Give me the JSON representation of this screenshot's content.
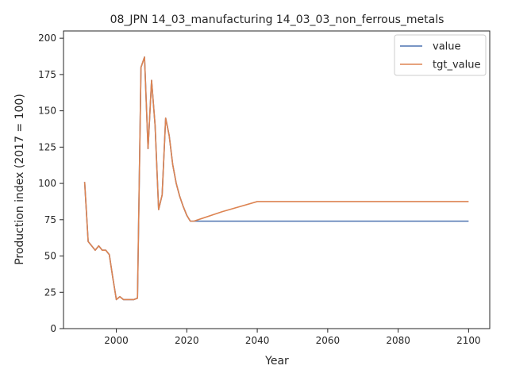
{
  "chart_data": {
    "type": "line",
    "title": "08_JPN 14_03_manufacturing 14_03_03_non_ferrous_metals",
    "xlabel": "Year",
    "ylabel": "Production index (2017 = 100)",
    "xlim": [
      1985,
      2106
    ],
    "ylim": [
      0,
      205
    ],
    "xticks": [
      2000,
      2020,
      2040,
      2060,
      2080,
      2100
    ],
    "yticks": [
      0,
      25,
      50,
      75,
      100,
      125,
      150,
      175,
      200
    ],
    "grid": false,
    "legend_position": "top-right",
    "series": [
      {
        "name": "value",
        "color": "#4c72b0",
        "x": [
          1991,
          1992,
          1993,
          1994,
          1995,
          1996,
          1997,
          1998,
          1999,
          2000,
          2001,
          2002,
          2003,
          2004,
          2005,
          2006,
          2007,
          2008,
          2009,
          2010,
          2011,
          2012,
          2013,
          2014,
          2015,
          2016,
          2017,
          2018,
          2019,
          2020,
          2021,
          2022,
          2030,
          2040,
          2050,
          2060,
          2070,
          2080,
          2090,
          2100
        ],
        "y": [
          101,
          60,
          57,
          54,
          57,
          54,
          54,
          51,
          35,
          20,
          22,
          20,
          20,
          20,
          20,
          21,
          180,
          187,
          124,
          171,
          140,
          82,
          92,
          145,
          133,
          113,
          100,
          91,
          84,
          78,
          74,
          74,
          74,
          74,
          74,
          74,
          74,
          74,
          74,
          74
        ]
      },
      {
        "name": "tgt_value",
        "color": "#dd8452",
        "x": [
          1991,
          1992,
          1993,
          1994,
          1995,
          1996,
          1997,
          1998,
          1999,
          2000,
          2001,
          2002,
          2003,
          2004,
          2005,
          2006,
          2007,
          2008,
          2009,
          2010,
          2011,
          2012,
          2013,
          2014,
          2015,
          2016,
          2017,
          2018,
          2019,
          2020,
          2021,
          2022,
          2030,
          2040,
          2050,
          2060,
          2070,
          2080,
          2090,
          2100
        ],
        "y": [
          101,
          60,
          57,
          54,
          57,
          54,
          54,
          51,
          35,
          20,
          22,
          20,
          20,
          20,
          20,
          21,
          180,
          187,
          124,
          171,
          140,
          82,
          92,
          145,
          133,
          113,
          100,
          91,
          84,
          78,
          74,
          74,
          80.5,
          87.5,
          87.5,
          87.5,
          87.5,
          87.5,
          87.5,
          87.5
        ]
      }
    ]
  }
}
